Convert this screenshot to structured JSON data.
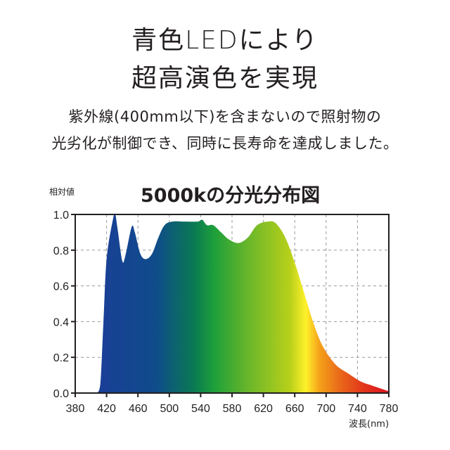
{
  "headline": {
    "line1": "青色LEDにより",
    "line2": "超高演色を実現"
  },
  "description": {
    "line1": "紫外線(400mm以下)を含まないので照射物の",
    "line2": "光劣化が制御でき、同時に長寿命を達成しました。"
  },
  "chart_data": {
    "type": "area",
    "title": "5000kの分光分布図",
    "xlabel": "波長(nm)",
    "ylabel": "相対値",
    "xlim": [
      380,
      780
    ],
    "ylim": [
      0.0,
      1.0
    ],
    "x_ticks": [
      "380",
      "420",
      "460",
      "500",
      "540",
      "580",
      "620",
      "660",
      "700",
      "740",
      "780"
    ],
    "y_ticks": [
      "0.0",
      "0.2",
      "0.4",
      "0.6",
      "0.8",
      "1.0"
    ],
    "grid": "dashed",
    "fill": "visible-spectrum gradient (blue → green → yellow → orange → red)",
    "x": [
      408,
      412,
      416,
      420,
      428,
      431,
      434,
      440,
      444,
      452,
      456,
      463,
      470,
      478,
      486,
      494,
      504,
      520,
      536,
      542,
      548,
      556,
      566,
      576,
      588,
      600,
      612,
      626,
      636,
      648,
      660,
      672,
      684,
      696,
      712,
      728,
      744,
      760,
      780
    ],
    "values": [
      0,
      0.05,
      0.4,
      0.75,
      0.97,
      1.0,
      0.92,
      0.74,
      0.77,
      0.93,
      0.9,
      0.78,
      0.75,
      0.78,
      0.87,
      0.94,
      0.96,
      0.96,
      0.96,
      0.97,
      0.94,
      0.94,
      0.9,
      0.86,
      0.84,
      0.87,
      0.94,
      0.96,
      0.95,
      0.87,
      0.73,
      0.56,
      0.39,
      0.26,
      0.16,
      0.11,
      0.065,
      0.04,
      0.01
    ]
  },
  "colors": {
    "spectrum_stops": [
      "#1a3f97",
      "#0f4c8a",
      "#0a7a52",
      "#1ea03a",
      "#6cb72a",
      "#b8d01a",
      "#fff12a",
      "#f5a21a",
      "#e8621a",
      "#e2331c",
      "#d91620"
    ],
    "grid": "#9a9a9a",
    "axis": "#231f20"
  }
}
